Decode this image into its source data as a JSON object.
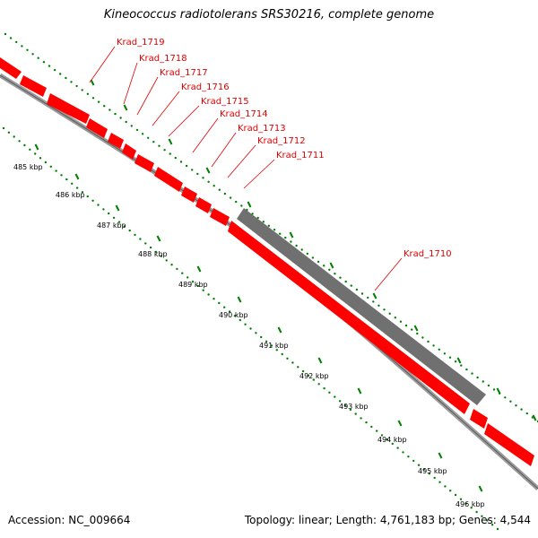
{
  "title": "Kineococcus radiotolerans SRS30216, complete genome",
  "footer": {
    "accession": "Accession: NC_009664",
    "summary": "Topology: linear; Length: 4,761,183 bp; Genes: 4,544"
  },
  "colors": {
    "gene_forward": "#ff0000",
    "gene_highlight": "#707070",
    "tick": "#008000",
    "backbone": "#888888",
    "label": "#e00000"
  },
  "genes": [
    {
      "id": "Krad_1719",
      "label": "Krad_1719"
    },
    {
      "id": "Krad_1718",
      "label": "Krad_1718"
    },
    {
      "id": "Krad_1717",
      "label": "Krad_1717"
    },
    {
      "id": "Krad_1716",
      "label": "Krad_1716"
    },
    {
      "id": "Krad_1715",
      "label": "Krad_1715"
    },
    {
      "id": "Krad_1714",
      "label": "Krad_1714"
    },
    {
      "id": "Krad_1713",
      "label": "Krad_1713"
    },
    {
      "id": "Krad_1712",
      "label": "Krad_1712"
    },
    {
      "id": "Krad_1711",
      "label": "Krad_1711"
    },
    {
      "id": "Krad_1710",
      "label": "Krad_1710"
    }
  ],
  "ticks": [
    "485 kbp",
    "486 kbp",
    "487 kbp",
    "488 kbp",
    "489 kbp",
    "490 kbp",
    "491 kbp",
    "492 kbp",
    "493 kbp",
    "494 kbp",
    "495 kbp",
    "496 kbp"
  ]
}
